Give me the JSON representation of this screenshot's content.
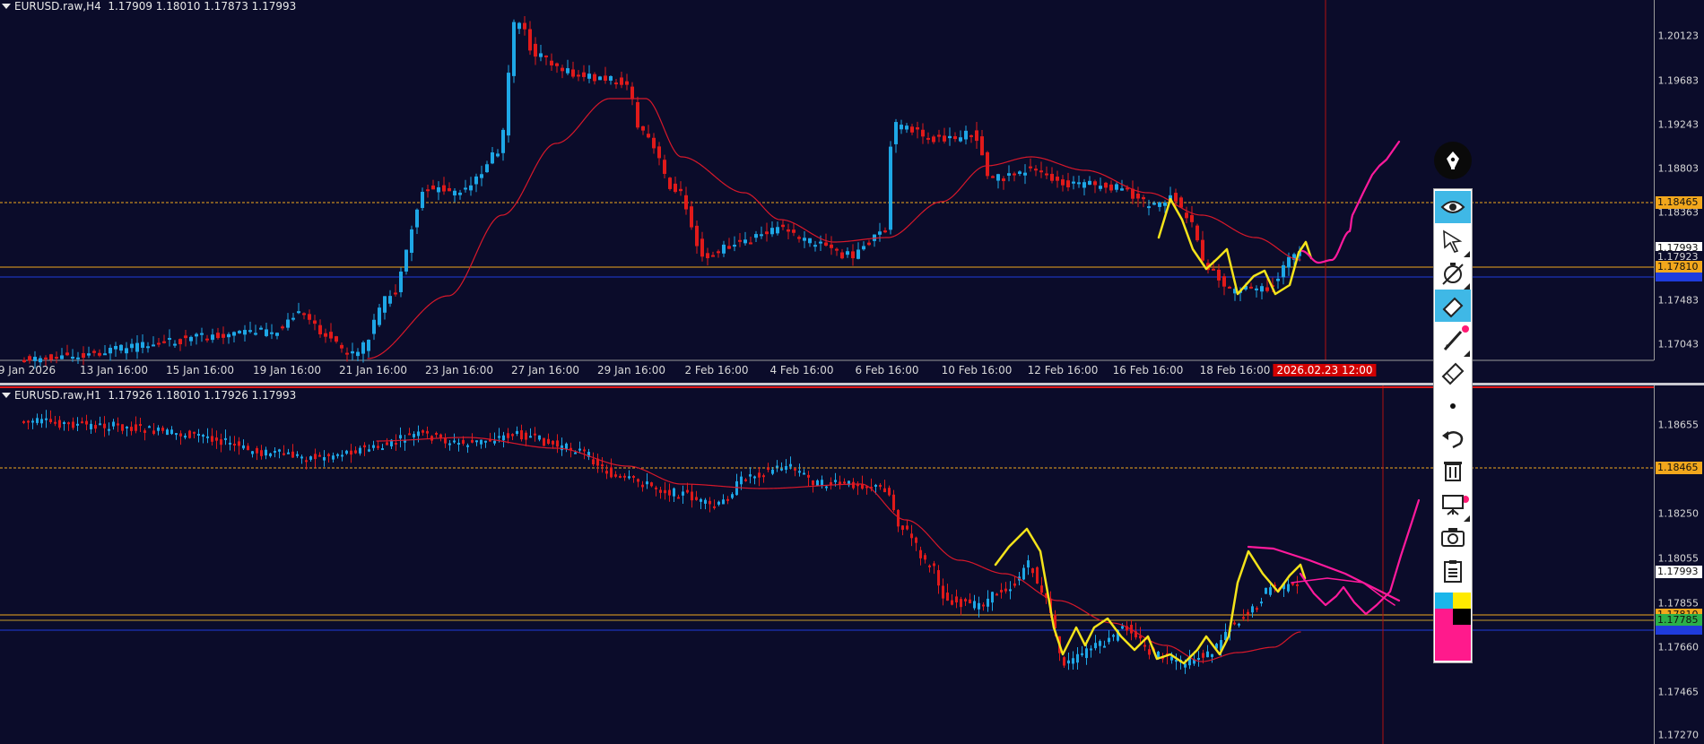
{
  "top_pane": {
    "title": "EURUSD.raw,H4  1.17909 1.18010 1.17873 1.17993",
    "price_labels": [
      "1.20123",
      "1.19683",
      "1.19243",
      "1.18803",
      "1.18363",
      "1.17483",
      "1.17043"
    ],
    "tags": {
      "level_1": "1.18465",
      "bid": "1.17993",
      "ask": "1.17923",
      "level_2": "1.17810"
    },
    "time_labels": [
      "9 Jan 2026",
      "13 Jan 16:00",
      "15 Jan 16:00",
      "19 Jan 16:00",
      "21 Jan 16:00",
      "23 Jan 16:00",
      "27 Jan 16:00",
      "29 Jan 16:00",
      "2 Feb 16:00",
      "4 Feb 16:00",
      "6 Feb 16:00",
      "10 Feb 16:00",
      "12 Feb 16:00",
      "16 Feb 16:00",
      "18 Feb 16:00"
    ],
    "current_time": "2026.02.23 12:00"
  },
  "bottom_pane": {
    "title": "EURUSD.raw,H1  1.17926 1.18010 1.17926 1.17993",
    "price_labels": [
      "1.18655",
      "1.18250",
      "1.18055",
      "1.17855",
      "1.17660",
      "1.17465",
      "1.17270"
    ],
    "tags": {
      "level_1": "1.18465",
      "bid": "1.17993",
      "level_2": "1.17810",
      "level_3": "1.17785"
    }
  },
  "colors": {
    "background": "#0b0c2a",
    "bull_candle": "#1ea7e6",
    "bear_candle": "#e01a1a",
    "moving_average": "#d8182a",
    "level_line": "#f2a71c",
    "zigzag": "#f4e31a",
    "forecast": "#ff1a9c",
    "blue_line": "#1f3cdc",
    "cursor_line": "#b01010"
  },
  "toolbar": {
    "tools": [
      "pen-logo-icon",
      "eye-icon",
      "cursor-icon",
      "stopwatch-icon",
      "eraser-icon",
      "pencil-icon",
      "ruler-icon",
      "dot-icon",
      "undo-icon",
      "trash-icon",
      "presentation-icon",
      "camera-icon",
      "clipboard-icon",
      "color-palette-icon"
    ]
  }
}
